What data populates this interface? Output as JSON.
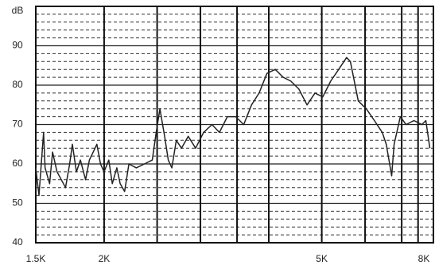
{
  "chart_data": {
    "type": "line",
    "y_unit_label": "dB",
    "x": [
      1500,
      1520,
      1550,
      1560,
      1590,
      1610,
      1640,
      1670,
      1700,
      1730,
      1750,
      1780,
      1810,
      1850,
      1880,
      1910,
      1940,
      1970,
      2000,
      2040,
      2070,
      2110,
      2140,
      2180,
      2220,
      2290,
      2370,
      2450,
      2490,
      2530,
      2580,
      2620,
      2660,
      2710,
      2770,
      2850,
      2940,
      3040,
      3150,
      3250,
      3360,
      3480,
      3600,
      3720,
      3840,
      3970,
      4110,
      4250,
      4390,
      4540,
      4700,
      4860,
      5020,
      5190,
      5370,
      5550,
      5640,
      5830,
      6030,
      6240,
      6450,
      6560,
      6710,
      6780,
      6960,
      7130,
      7370,
      7620,
      7750,
      7880
    ],
    "series": [
      {
        "color": "#222222",
        "values": [
          59,
          52,
          68,
          59,
          55,
          63,
          58,
          56,
          54,
          60,
          65,
          58,
          61,
          56,
          61,
          63,
          65,
          60,
          58,
          61,
          55,
          59,
          55,
          53,
          60,
          59,
          60,
          61,
          68,
          74,
          67,
          61,
          59,
          66,
          64,
          67,
          64,
          68,
          70,
          68,
          72,
          72,
          70,
          75,
          78,
          83,
          84,
          82,
          81,
          79,
          75,
          78,
          77,
          81,
          84,
          87,
          86,
          76,
          74,
          71,
          68,
          65,
          57,
          65,
          72,
          70,
          71,
          70,
          71,
          64
        ]
      }
    ],
    "xscale": "log",
    "xlim": [
      1500,
      8000
    ],
    "ylim": [
      40,
      100
    ],
    "xticks": [
      {
        "value": 1500,
        "label": "1.5K"
      },
      {
        "value": 2000,
        "label": "2K"
      },
      {
        "value": 5000,
        "label": "5K"
      },
      {
        "value": 8000,
        "label": "8K"
      }
    ],
    "xgrid": [
      2500,
      3000,
      3500,
      4000,
      6000,
      7000,
      7500
    ],
    "yticks": [
      40,
      50,
      60,
      70,
      80,
      90
    ],
    "yminor_step": 2,
    "grid": true
  }
}
